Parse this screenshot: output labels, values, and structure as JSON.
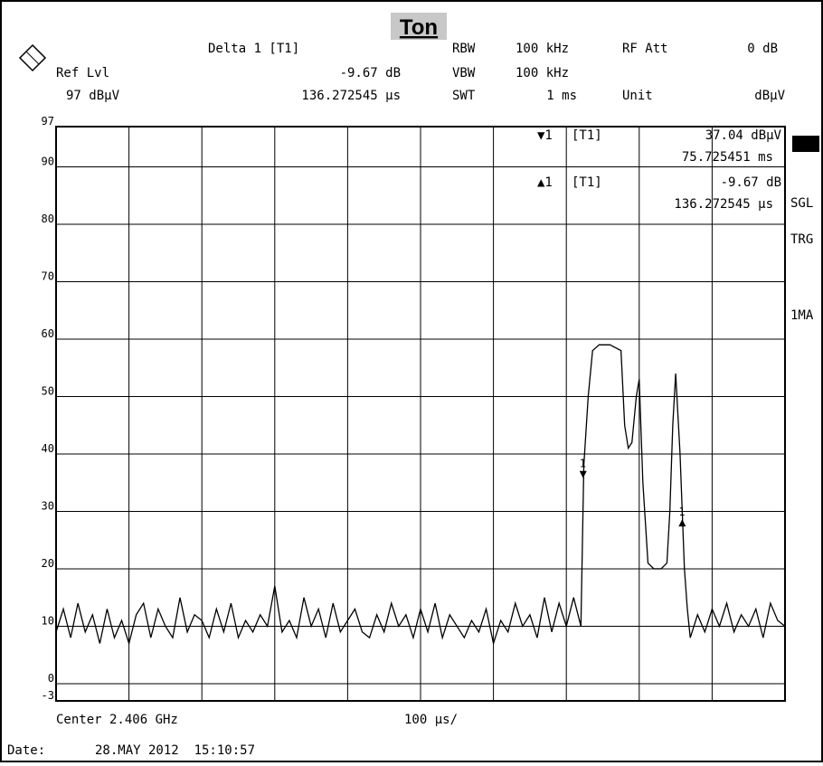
{
  "chart_data": {
    "type": "line",
    "title": "Ton",
    "header": {
      "delta": "Delta 1 [T1]",
      "delta_value": "-9.67 dB",
      "delta_time": "136.272545 µs",
      "ref_lvl": "Ref Lvl",
      "ref_value": "97 dBµV",
      "rbw": "RBW",
      "rbw_value": "100 kHz",
      "vbw": "VBW",
      "vbw_value": "100 kHz",
      "swt": "SWT",
      "swt_value": "1 ms",
      "rf_att": "RF Att",
      "rf_att_value": "0 dB",
      "unit": "Unit",
      "unit_value": "dBµV"
    },
    "marker_info": [
      {
        "symbol": "▼1",
        "trace": "[T1]",
        "level": "37.04 dBµV",
        "time": "75.725451 ms"
      },
      {
        "symbol": "▲1",
        "trace": "[T1]",
        "level": "-9.67 dB",
        "time": "136.272545 µs"
      }
    ],
    "markers": [
      {
        "label": "1",
        "x": 723,
        "y": 37.04,
        "dir": "down"
      },
      {
        "label": "1",
        "x": 859,
        "y": 27.37,
        "dir": "up"
      }
    ],
    "side": [
      "SGL",
      "TRG",
      "1MA"
    ],
    "center": "Center 2.406 GHz",
    "span": "100 µs/",
    "date_label": "Date:",
    "date": "28.MAY 2012  15:10:57",
    "xlim": [
      0,
      1000
    ],
    "xticks": [
      0,
      100,
      200,
      300,
      400,
      500,
      600,
      700,
      800,
      900,
      1000
    ],
    "ylim": [
      -3,
      97
    ],
    "yticks": [
      -3,
      0,
      10,
      20,
      30,
      40,
      50,
      60,
      70,
      80,
      90,
      97
    ],
    "grid": true,
    "color": "#000000",
    "x": [
      0,
      10,
      20,
      30,
      40,
      50,
      60,
      70,
      80,
      90,
      100,
      110,
      120,
      130,
      140,
      150,
      160,
      170,
      180,
      190,
      200,
      210,
      220,
      230,
      240,
      250,
      260,
      270,
      280,
      290,
      300,
      310,
      320,
      330,
      340,
      350,
      360,
      370,
      380,
      390,
      400,
      410,
      420,
      430,
      440,
      450,
      460,
      470,
      480,
      490,
      500,
      510,
      520,
      530,
      540,
      550,
      560,
      570,
      580,
      590,
      600,
      610,
      620,
      630,
      640,
      650,
      660,
      670,
      680,
      690,
      700,
      710,
      720,
      724,
      730,
      736,
      745,
      760,
      775,
      780,
      785,
      790,
      796,
      800,
      805,
      812,
      820,
      830,
      838,
      842,
      846,
      850,
      856,
      862,
      866,
      870,
      880,
      890,
      900,
      910,
      920,
      930,
      940,
      950,
      960,
      970,
      980,
      990,
      1000
    ],
    "values": [
      9,
      13,
      8,
      14,
      9,
      12,
      7,
      13,
      8,
      11,
      7,
      12,
      14,
      8,
      13,
      10,
      8,
      15,
      9,
      12,
      11,
      8,
      13,
      9,
      14,
      8,
      11,
      9,
      12,
      10,
      17,
      9,
      11,
      8,
      15,
      10,
      13,
      8,
      14,
      9,
      11,
      13,
      9,
      8,
      12,
      9,
      14,
      10,
      12,
      8,
      13,
      9,
      14,
      8,
      12,
      10,
      8,
      11,
      9,
      13,
      7,
      11,
      9,
      14,
      10,
      12,
      8,
      15,
      9,
      14,
      10,
      15,
      10,
      38,
      50,
      58,
      59,
      59,
      58,
      45,
      41,
      42,
      50,
      53,
      35,
      21,
      20,
      20,
      21,
      30,
      45,
      54,
      40,
      20,
      13,
      8,
      12,
      9,
      13,
      10,
      14,
      9,
      12,
      10,
      13,
      8,
      14,
      11,
      10
    ]
  }
}
